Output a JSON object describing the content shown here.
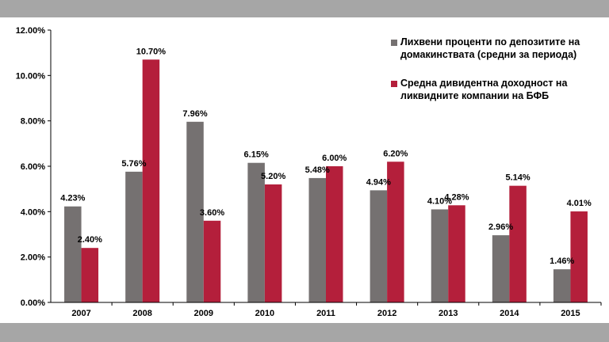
{
  "chart_data": {
    "type": "bar",
    "title": "",
    "xlabel": "",
    "ylabel": "",
    "categories": [
      "2007",
      "2008",
      "2009",
      "2010",
      "2011",
      "2012",
      "2013",
      "2014",
      "2015"
    ],
    "series": [
      {
        "name": "Лихвени проценти по депозитите на домакинствата (средни за периода)",
        "color": "#757171",
        "values": [
          4.23,
          5.76,
          7.96,
          6.15,
          5.48,
          4.94,
          4.1,
          2.96,
          1.46
        ],
        "labels": [
          "4.23%",
          "5.76%",
          "7.96%",
          "6.15%",
          "5.48%",
          "4.94%",
          "4.10%",
          "2.96%",
          "1.46%"
        ]
      },
      {
        "name": "Средна дивидентна доходност на ликвидните компании на БФБ",
        "color": "#b41f3b",
        "values": [
          2.4,
          10.7,
          3.6,
          5.2,
          6.0,
          6.2,
          4.28,
          5.14,
          4.01
        ],
        "labels": [
          "2.40%",
          "10.70%",
          "3.60%",
          "5.20%",
          "6.00%",
          "6.20%",
          "4.28%",
          "5.14%",
          "4.01%"
        ]
      }
    ],
    "ylim": [
      0,
      12
    ],
    "yticks": [
      0,
      2,
      4,
      6,
      8,
      10,
      12
    ],
    "ytick_labels": [
      "0.00%",
      "2.00%",
      "4.00%",
      "6.00%",
      "8.00%",
      "10.00%",
      "12.00%"
    ],
    "grid": false,
    "legend": "top-right"
  }
}
